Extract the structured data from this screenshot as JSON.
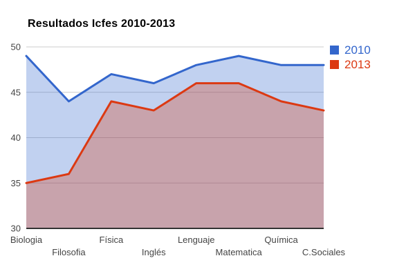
{
  "title": "Resultados Icfes 2010-2013",
  "legend": {
    "position": "right",
    "items": [
      {
        "label": "2010",
        "color": "#3366CC"
      },
      {
        "label": "2013",
        "color": "#DC3912"
      }
    ]
  },
  "colors": {
    "series_2010": "#3366CC",
    "series_2013": "#DC3912",
    "gridline": "#CCCCCC",
    "axis_line": "#333333",
    "axis_text": "#444444",
    "title_text": "#000000",
    "background": "#FFFFFF"
  },
  "chart_data": {
    "type": "area",
    "title": "Resultados Icfes 2010-2013",
    "categories": [
      "Biologia",
      "Filosofia",
      "Física",
      "Inglés",
      "Lenguaje",
      "Matematica",
      "Química",
      "C.Sociales"
    ],
    "series": [
      {
        "name": "2010",
        "color": "#3366CC",
        "values": [
          49,
          44,
          47,
          46,
          48,
          49,
          48,
          48
        ]
      },
      {
        "name": "2013",
        "color": "#DC3912",
        "values": [
          35,
          36,
          44,
          43,
          46,
          46,
          44,
          43
        ]
      }
    ],
    "xlabel": "",
    "ylabel": "",
    "ylim": [
      30,
      50
    ],
    "yticks": [
      30,
      35,
      40,
      45,
      50
    ],
    "grid": true,
    "area_opacity": 0.3,
    "legend_position": "right",
    "stacked": false
  }
}
